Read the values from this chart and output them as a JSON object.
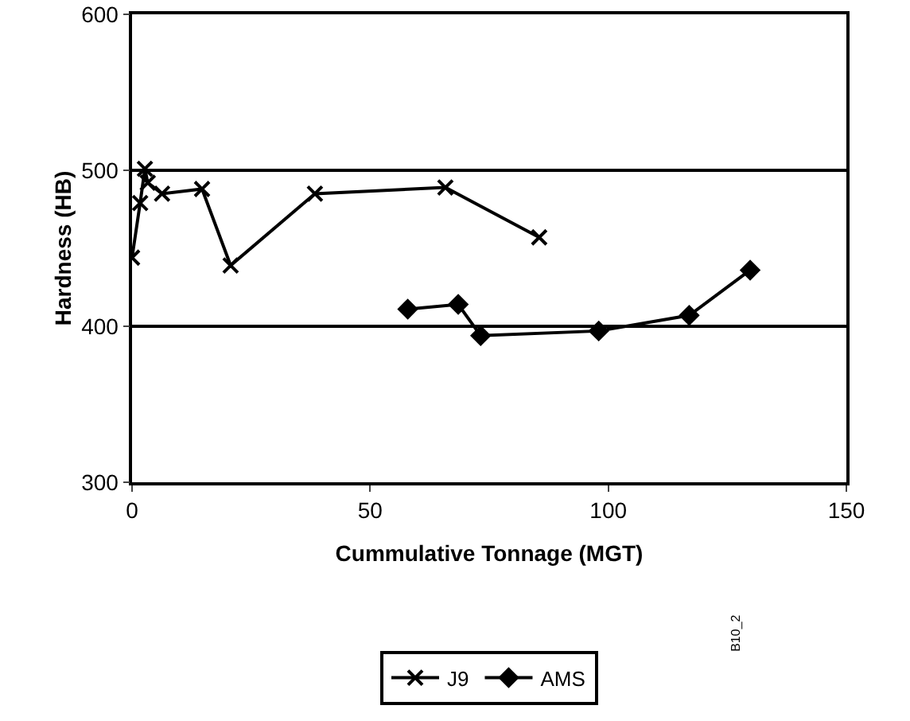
{
  "chart_data": {
    "type": "line",
    "xlabel": "Cummulative Tonnage (MGT)",
    "ylabel": "Hardness (HB)",
    "xlim": [
      0,
      150
    ],
    "xticks": [
      0,
      50,
      100,
      150
    ],
    "ylim": [
      300,
      600
    ],
    "yticks": [
      300,
      400,
      500,
      600
    ],
    "grid": "y",
    "legend": "bottom",
    "series": [
      {
        "name": "J9",
        "color": "#000000",
        "marker": "cross",
        "x": [
          0,
          1.7,
          2.7,
          3.3,
          6.3,
          14.7,
          20.7,
          38.4,
          65.8,
          85.5
        ],
        "values": [
          444,
          479,
          501,
          492,
          485,
          488,
          439,
          485,
          489,
          457
        ]
      },
      {
        "name": "AMS",
        "color": "#000000",
        "marker": "diamond",
        "x": [
          57.9,
          68.5,
          73.2,
          98,
          117,
          129.8
        ],
        "values": [
          411,
          414,
          394,
          397,
          407,
          436
        ]
      }
    ],
    "annotations": [
      "B10_2"
    ]
  }
}
